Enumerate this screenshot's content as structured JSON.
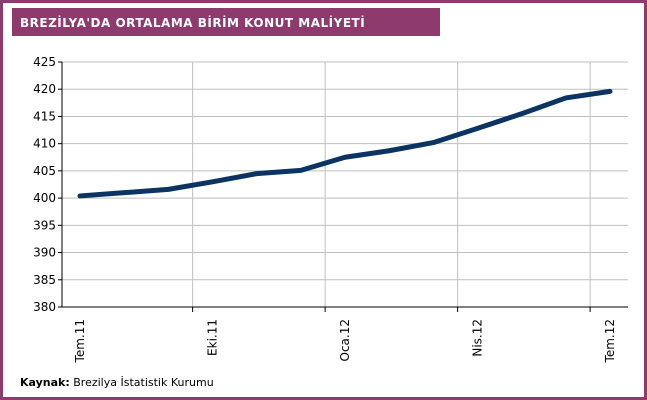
{
  "chart_data": {
    "type": "line",
    "title": "BREZİLYA'DA ORTALAMA BİRİM KONUT MALİYETİ",
    "categories": [
      "Tem.11",
      null,
      null,
      "Eki.11",
      null,
      null,
      "Oca.12",
      null,
      null,
      "Nis.12",
      null,
      null,
      "Tem.12"
    ],
    "series": [
      {
        "name": "Ortalama birim konut maliyeti",
        "color": "#0b3463",
        "values": [
          400.4,
          401.0,
          401.6,
          403.0,
          404.5,
          405.1,
          407.5,
          408.7,
          410.2,
          412.8,
          415.5,
          418.4,
          419.6
        ]
      }
    ],
    "ylim": [
      380,
      425
    ],
    "yticks": [
      380,
      385,
      390,
      395,
      400,
      405,
      410,
      415,
      420,
      425
    ],
    "grid": true,
    "source": {
      "label": "Kaynak:",
      "text": "Brezilya İstatistik Kurumu"
    }
  }
}
